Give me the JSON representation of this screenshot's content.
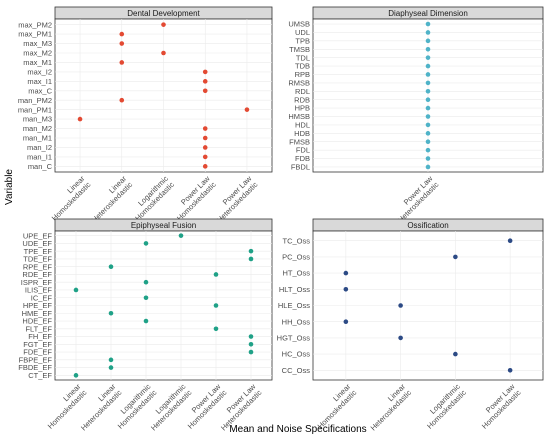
{
  "figure": {
    "ylabel": "Variable",
    "xlabel": "Mean and Noise Specifications"
  },
  "chart_data": [
    {
      "type": "scatter",
      "title": "Dental Development",
      "color": "#e34a33",
      "x_categories": [
        "Linear\nHomoskedastic",
        "Linear\nHeteroskedastic",
        "Logarithmic\nHomoskedastic",
        "Power Law\nHomoskedastic",
        "Power Law\nHeteroskedastic"
      ],
      "y_categories": [
        "max_PM2",
        "max_PM1",
        "max_M3",
        "max_M2",
        "max_M1",
        "max_I2",
        "max_I1",
        "max_C",
        "man_PM2",
        "man_PM1",
        "man_M3",
        "man_M2",
        "man_M1",
        "man_I2",
        "man_I1",
        "man_C"
      ],
      "points": [
        {
          "x": "Logarithmic\nHomoskedastic",
          "y": "max_PM2"
        },
        {
          "x": "Linear\nHeteroskedastic",
          "y": "max_PM1"
        },
        {
          "x": "Linear\nHeteroskedastic",
          "y": "max_M3"
        },
        {
          "x": "Logarithmic\nHomoskedastic",
          "y": "max_M2"
        },
        {
          "x": "Linear\nHeteroskedastic",
          "y": "max_M1"
        },
        {
          "x": "Power Law\nHomoskedastic",
          "y": "max_I2"
        },
        {
          "x": "Power Law\nHomoskedastic",
          "y": "max_I1"
        },
        {
          "x": "Power Law\nHomoskedastic",
          "y": "max_C"
        },
        {
          "x": "Linear\nHeteroskedastic",
          "y": "man_PM2"
        },
        {
          "x": "Power Law\nHeteroskedastic",
          "y": "man_PM1"
        },
        {
          "x": "Linear\nHomoskedastic",
          "y": "man_M3"
        },
        {
          "x": "Power Law\nHomoskedastic",
          "y": "man_M2"
        },
        {
          "x": "Power Law\nHomoskedastic",
          "y": "man_M1"
        },
        {
          "x": "Power Law\nHomoskedastic",
          "y": "man_I2"
        },
        {
          "x": "Power Law\nHomoskedastic",
          "y": "man_I1"
        },
        {
          "x": "Power Law\nHomoskedastic",
          "y": "man_C"
        }
      ]
    },
    {
      "type": "scatter",
      "title": "Diaphyseal Dimension",
      "color": "#4fb3c8",
      "x_categories": [
        "Power Law\nHeteroskedastic"
      ],
      "y_categories": [
        "UMSB",
        "UDL",
        "TPB",
        "TMSB",
        "TDL",
        "TDB",
        "RPB",
        "RMSB",
        "RDL",
        "RDB",
        "HPB",
        "HMSB",
        "HDL",
        "HDB",
        "FMSB",
        "FDL",
        "FDB",
        "FBDL"
      ],
      "points": [
        {
          "x": "Power Law\nHeteroskedastic",
          "y": "UMSB"
        },
        {
          "x": "Power Law\nHeteroskedastic",
          "y": "UDL"
        },
        {
          "x": "Power Law\nHeteroskedastic",
          "y": "TPB"
        },
        {
          "x": "Power Law\nHeteroskedastic",
          "y": "TMSB"
        },
        {
          "x": "Power Law\nHeteroskedastic",
          "y": "TDL"
        },
        {
          "x": "Power Law\nHeteroskedastic",
          "y": "TDB"
        },
        {
          "x": "Power Law\nHeteroskedastic",
          "y": "RPB"
        },
        {
          "x": "Power Law\nHeteroskedastic",
          "y": "RMSB"
        },
        {
          "x": "Power Law\nHeteroskedastic",
          "y": "RDL"
        },
        {
          "x": "Power Law\nHeteroskedastic",
          "y": "RDB"
        },
        {
          "x": "Power Law\nHeteroskedastic",
          "y": "HPB"
        },
        {
          "x": "Power Law\nHeteroskedastic",
          "y": "HMSB"
        },
        {
          "x": "Power Law\nHeteroskedastic",
          "y": "HDL"
        },
        {
          "x": "Power Law\nHeteroskedastic",
          "y": "HDB"
        },
        {
          "x": "Power Law\nHeteroskedastic",
          "y": "FMSB"
        },
        {
          "x": "Power Law\nHeteroskedastic",
          "y": "FDL"
        },
        {
          "x": "Power Law\nHeteroskedastic",
          "y": "FDB"
        },
        {
          "x": "Power Law\nHeteroskedastic",
          "y": "FBDL"
        }
      ]
    },
    {
      "type": "scatter",
      "title": "Epiphyseal Fusion",
      "color": "#1fa187",
      "x_categories": [
        "Linear\nHomoskedastic",
        "Linear\nHeteroskedastic",
        "Logarithmic\nHomoskedastic",
        "Logarithmic\nHeteroskedastic",
        "Power Law\nHomoskedastic",
        "Power Law\nHeteroskedastic"
      ],
      "y_categories": [
        "UPE_EF",
        "UDE_EF",
        "TPE_EF",
        "TDE_EF",
        "RPE_EF",
        "RDE_EF",
        "ISPR_EF",
        "ILIS_EF",
        "IC_EF",
        "HPE_EF",
        "HME_EF",
        "HDE_EF",
        "FLT_EF",
        "FH_EF",
        "FGT_EF",
        "FDE_EF",
        "FBPE_EF",
        "FBDE_EF",
        "CT_EF"
      ],
      "points": [
        {
          "x": "Logarithmic\nHeteroskedastic",
          "y": "UPE_EF"
        },
        {
          "x": "Logarithmic\nHomoskedastic",
          "y": "UDE_EF"
        },
        {
          "x": "Power Law\nHeteroskedastic",
          "y": "TPE_EF"
        },
        {
          "x": "Power Law\nHeteroskedastic",
          "y": "TDE_EF"
        },
        {
          "x": "Linear\nHeteroskedastic",
          "y": "RPE_EF"
        },
        {
          "x": "Power Law\nHomoskedastic",
          "y": "RDE_EF"
        },
        {
          "x": "Logarithmic\nHomoskedastic",
          "y": "ISPR_EF"
        },
        {
          "x": "Linear\nHomoskedastic",
          "y": "ILIS_EF"
        },
        {
          "x": "Logarithmic\nHomoskedastic",
          "y": "IC_EF"
        },
        {
          "x": "Power Law\nHomoskedastic",
          "y": "HPE_EF"
        },
        {
          "x": "Linear\nHeteroskedastic",
          "y": "HME_EF"
        },
        {
          "x": "Logarithmic\nHomoskedastic",
          "y": "HDE_EF"
        },
        {
          "x": "Power Law\nHomoskedastic",
          "y": "FLT_EF"
        },
        {
          "x": "Power Law\nHeteroskedastic",
          "y": "FH_EF"
        },
        {
          "x": "Power Law\nHeteroskedastic",
          "y": "FGT_EF"
        },
        {
          "x": "Power Law\nHeteroskedastic",
          "y": "FDE_EF"
        },
        {
          "x": "Linear\nHeteroskedastic",
          "y": "FBPE_EF"
        },
        {
          "x": "Linear\nHeteroskedastic",
          "y": "FBDE_EF"
        },
        {
          "x": "Linear\nHomoskedastic",
          "y": "CT_EF"
        }
      ]
    },
    {
      "type": "scatter",
      "title": "Ossification",
      "color": "#2c4a85",
      "x_categories": [
        "Linear\nHomoskedastic",
        "Linear\nHeteroskedastic",
        "Logarithmic\nHomoskedastic",
        "Power Law\nHomoskedastic"
      ],
      "y_categories": [
        "TC_Oss",
        "PC_Oss",
        "HT_Oss",
        "HLT_Oss",
        "HLE_Oss",
        "HH_Oss",
        "HGT_Oss",
        "HC_Oss",
        "CC_Oss"
      ],
      "points": [
        {
          "x": "Power Law\nHomoskedastic",
          "y": "TC_Oss"
        },
        {
          "x": "Logarithmic\nHomoskedastic",
          "y": "PC_Oss"
        },
        {
          "x": "Linear\nHomoskedastic",
          "y": "HT_Oss"
        },
        {
          "x": "Linear\nHomoskedastic",
          "y": "HLT_Oss"
        },
        {
          "x": "Linear\nHeteroskedastic",
          "y": "HLE_Oss"
        },
        {
          "x": "Linear\nHomoskedastic",
          "y": "HH_Oss"
        },
        {
          "x": "Linear\nHeteroskedastic",
          "y": "HGT_Oss"
        },
        {
          "x": "Logarithmic\nHomoskedastic",
          "y": "HC_Oss"
        },
        {
          "x": "Power Law\nHomoskedastic",
          "y": "CC_Oss"
        }
      ]
    }
  ]
}
